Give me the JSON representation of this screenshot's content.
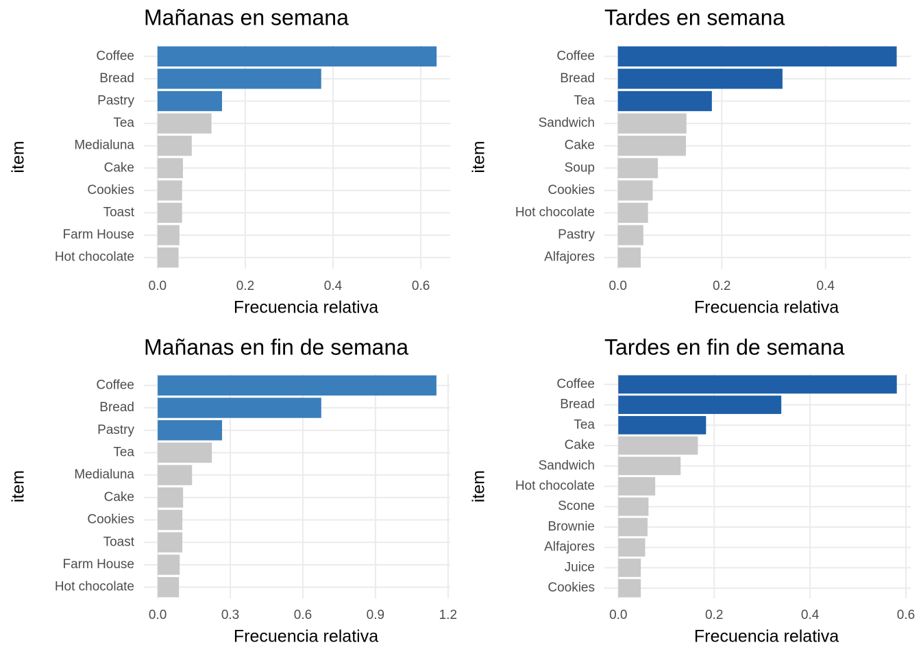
{
  "chart_data": [
    {
      "type": "bar",
      "orientation": "horizontal",
      "title": "Mañanas en semana",
      "x_label": "Frecuencia relativa",
      "y_label": "item",
      "categories": [
        "Coffee",
        "Bread",
        "Pastry",
        "Tea",
        "Medialuna",
        "Cake",
        "Cookies",
        "Toast",
        "Farm House",
        "Hot chocolate"
      ],
      "values": [
        0.636,
        0.373,
        0.147,
        0.123,
        0.078,
        0.058,
        0.056,
        0.056,
        0.05,
        0.048
      ],
      "colors": [
        "#3a7ebb",
        "#3a7ebb",
        "#3a7ebb",
        "#c8c8c8",
        "#c8c8c8",
        "#c8c8c8",
        "#c8c8c8",
        "#c8c8c8",
        "#c8c8c8",
        "#c8c8c8"
      ],
      "xlim": [
        -0.031,
        0.667
      ],
      "xticks": [
        {
          "value": 0,
          "label": "0.0"
        },
        0.2,
        0.4,
        0.6
      ],
      "grid": true
    },
    {
      "type": "bar",
      "orientation": "horizontal",
      "title": "Tardes en semana",
      "x_label": "Frecuencia relativa",
      "y_label": "item",
      "categories": [
        "Coffee",
        "Bread",
        "Tea",
        "Sandwich",
        "Cake",
        "Soup",
        "Cookies",
        "Hot chocolate",
        "Pastry",
        "Alfajores"
      ],
      "values": [
        0.537,
        0.317,
        0.181,
        0.132,
        0.131,
        0.077,
        0.067,
        0.058,
        0.049,
        0.044
      ],
      "colors": [
        "#1f5fa8",
        "#1f5fa8",
        "#1f5fa8",
        "#c8c8c8",
        "#c8c8c8",
        "#c8c8c8",
        "#c8c8c8",
        "#c8c8c8",
        "#c8c8c8",
        "#c8c8c8"
      ],
      "xlim": [
        -0.026,
        0.564
      ],
      "xticks": [
        {
          "value": 0,
          "label": "0.0"
        },
        0.2,
        0.4
      ],
      "grid": true
    },
    {
      "type": "bar",
      "orientation": "horizontal",
      "title": "Mañanas en fin de semana",
      "x_label": "Frecuencia relativa",
      "y_label": "item",
      "categories": [
        "Coffee",
        "Bread",
        "Pastry",
        "Tea",
        "Medialuna",
        "Cake",
        "Cookies",
        "Toast",
        "Farm House",
        "Hot chocolate"
      ],
      "values": [
        1.152,
        0.676,
        0.266,
        0.224,
        0.142,
        0.105,
        0.102,
        0.102,
        0.091,
        0.088
      ],
      "colors": [
        "#3a7ebb",
        "#3a7ebb",
        "#3a7ebb",
        "#c8c8c8",
        "#c8c8c8",
        "#c8c8c8",
        "#c8c8c8",
        "#c8c8c8",
        "#c8c8c8",
        "#c8c8c8"
      ],
      "xlim": [
        -0.057,
        1.209
      ],
      "xticks": [
        {
          "value": 0,
          "label": "0.0"
        },
        0.3,
        0.6,
        0.9,
        1.2
      ],
      "grid": true
    },
    {
      "type": "bar",
      "orientation": "horizontal",
      "title": "Tardes en fin de semana",
      "x_label": "Frecuencia relativa",
      "y_label": "item",
      "categories": [
        "Coffee",
        "Bread",
        "Tea",
        "Cake",
        "Sandwich",
        "Hot chocolate",
        "Scone",
        "Brownie",
        "Alfajores",
        "Juice",
        "Cookies"
      ],
      "values": [
        0.581,
        0.34,
        0.183,
        0.166,
        0.13,
        0.077,
        0.063,
        0.061,
        0.056,
        0.047,
        0.047
      ],
      "colors": [
        "#1f5fa8",
        "#1f5fa8",
        "#1f5fa8",
        "#c8c8c8",
        "#c8c8c8",
        "#c8c8c8",
        "#c8c8c8",
        "#c8c8c8",
        "#c8c8c8",
        "#c8c8c8",
        "#c8c8c8"
      ],
      "xlim": [
        -0.029,
        0.61
      ],
      "xticks": [
        {
          "value": 0,
          "label": "0.0"
        },
        0.2,
        0.4,
        0.6
      ],
      "grid": true
    }
  ]
}
